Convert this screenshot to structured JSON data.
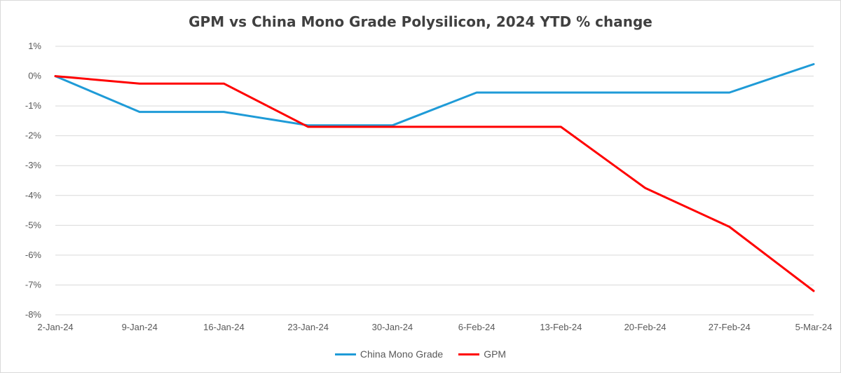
{
  "chart_data": {
    "type": "line",
    "title": "GPM vs China Mono Grade Polysilicon, 2024 YTD % change",
    "xlabel": "",
    "ylabel": "",
    "categories": [
      "2-Jan-24",
      "9-Jan-24",
      "16-Jan-24",
      "23-Jan-24",
      "30-Jan-24",
      "6-Feb-24",
      "13-Feb-24",
      "20-Feb-24",
      "27-Feb-24",
      "5-Mar-24"
    ],
    "y_ticks": [
      "1%",
      "0%",
      "-1%",
      "-2%",
      "-3%",
      "-4%",
      "-5%",
      "-6%",
      "-7%",
      "-8%"
    ],
    "ylim": [
      -8,
      1
    ],
    "grid": true,
    "legend_position": "bottom",
    "series": [
      {
        "name": "China Mono Grade",
        "color": "#1f9bd7",
        "values": [
          0,
          -1.2,
          -1.2,
          -1.65,
          -1.65,
          -0.55,
          -0.55,
          -0.55,
          -0.55,
          0.4
        ]
      },
      {
        "name": "GPM",
        "color": "#ff0000",
        "values": [
          0,
          -0.25,
          -0.25,
          -1.7,
          -1.7,
          -1.7,
          -1.7,
          -3.75,
          -5.05,
          -7.2
        ]
      }
    ]
  }
}
